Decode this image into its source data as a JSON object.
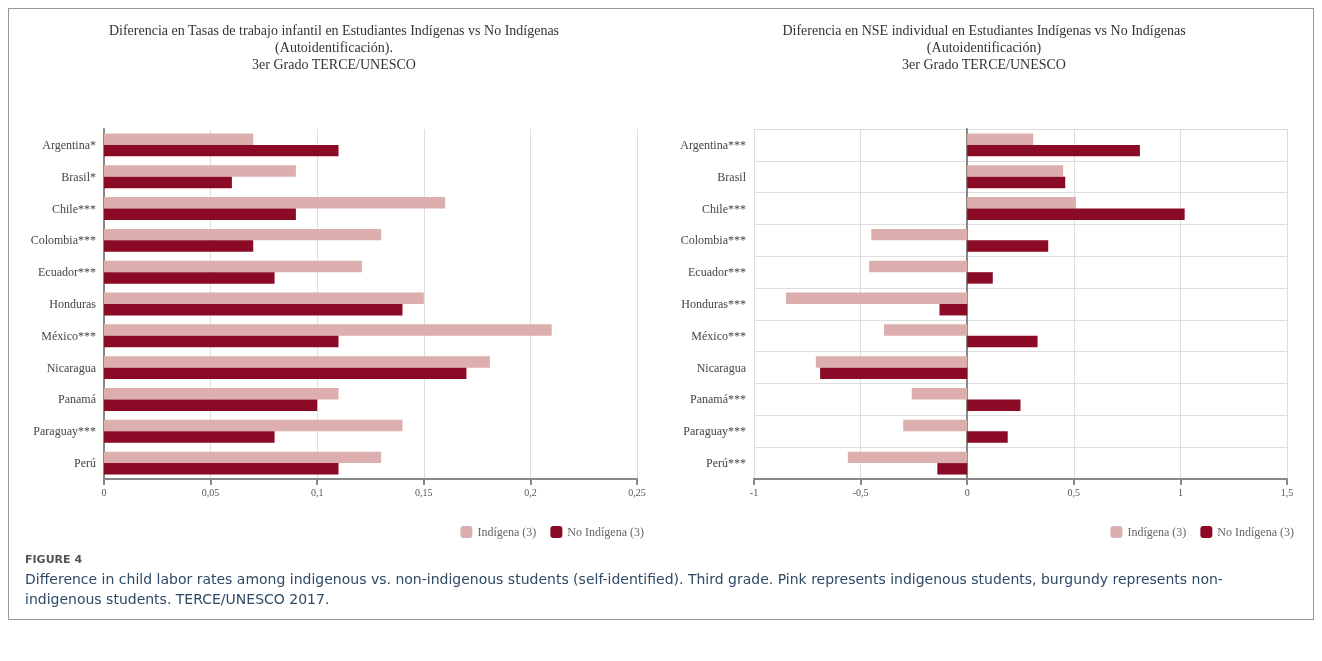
{
  "chart_data": [
    {
      "type": "bar",
      "orientation": "horizontal",
      "title": "Diferencia en Tasas de trabajo infantil en Estudiantes Indígenas vs No Indígenas\n(Autoidentificación).\n3er Grado TERCE/UNESCO",
      "categories": [
        "Argentina*",
        "Brasil*",
        "Chile***",
        "Colombia***",
        "Ecuador***",
        "Honduras",
        "México***",
        "Nicaragua",
        "Panamá",
        "Paraguay***",
        "Perú"
      ],
      "series": [
        {
          "name": "Indígena (3)",
          "color": "#dcaeae",
          "values": [
            0.07,
            0.09,
            0.16,
            0.13,
            0.121,
            0.15,
            0.21,
            0.181,
            0.11,
            0.14,
            0.13
          ]
        },
        {
          "name": "No Indígena (3)",
          "color": "#8b0a25",
          "values": [
            0.11,
            0.06,
            0.09,
            0.07,
            0.08,
            0.14,
            0.11,
            0.17,
            0.1,
            0.08,
            0.11
          ]
        }
      ],
      "xlim": [
        0,
        0.25
      ],
      "xticks": [
        0,
        {
          "value": 0.05,
          "label": "0,05"
        },
        {
          "value": 0.1,
          "label": "0,1"
        },
        {
          "value": 0.15,
          "label": "0,15"
        },
        {
          "value": 0.2,
          "label": "0,2"
        },
        {
          "value": 0.25,
          "label": "0,25"
        }
      ],
      "grid": "x",
      "legend": "bottom right",
      "annotations": [
        "FIGURE 4",
        "Difference in child labor rates among indigenous vs. non-indigenous students (self-identified). Third grade. Pink represents indigenous students, burgundy represents non-indigenous students. TERCE/UNESCO 2017."
      ]
    },
    {
      "type": "bar",
      "orientation": "horizontal",
      "title": "Diferencia en NSE individual en Estudiantes Indígenas vs No Indígenas\n(Autoidentificación)\n3er Grado TERCE/UNESCO",
      "categories": [
        "Argentina***",
        "Brasil",
        "Chile***",
        "Colombia***",
        "Ecuador***",
        "Honduras***",
        "México***",
        "Nicaragua",
        "Panamá***",
        "Paraguay***",
        "Perú***"
      ],
      "series": [
        {
          "name": "Indígena (3)",
          "color": "#dcaeae",
          "values": [
            0.31,
            0.45,
            0.51,
            -0.45,
            -0.46,
            -0.85,
            -0.39,
            -0.71,
            -0.26,
            -0.3,
            -0.56
          ]
        },
        {
          "name": "No Indígena (3)",
          "color": "#8b0a25",
          "values": [
            0.81,
            0.46,
            1.02,
            0.38,
            0.12,
            -0.13,
            0.33,
            -0.69,
            0.25,
            0.19,
            -0.14
          ]
        }
      ],
      "xlim": [
        -1,
        1.5
      ],
      "xticks": [
        -1,
        {
          "value": -0.5,
          "label": "-0,5"
        },
        0,
        {
          "value": 0.5,
          "label": "0,5"
        },
        1,
        {
          "value": 1.5,
          "label": "1,5"
        }
      ],
      "grid": true,
      "legend": "bottom right"
    }
  ]
}
